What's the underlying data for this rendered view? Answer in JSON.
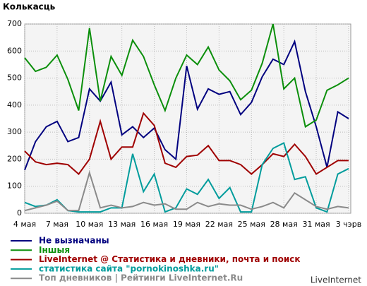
{
  "chart_data": {
    "type": "line",
    "title": "Колькасць",
    "footer": "LiveInternet",
    "categories": [
      "4 мая",
      null,
      null,
      "7 мая",
      null,
      null,
      "10 мая",
      null,
      null,
      "13 мая",
      null,
      null,
      "16 мая",
      null,
      null,
      "19 мая",
      null,
      null,
      "22 мая",
      null,
      null,
      "25 мая",
      null,
      null,
      "28 мая",
      null,
      null,
      "31 мая",
      null,
      null,
      "3 чэрв"
    ],
    "ylim": [
      0,
      700
    ],
    "yticks": [
      0,
      100,
      200,
      300,
      400,
      500,
      600,
      700
    ],
    "grid": true,
    "series": [
      {
        "name": "Не вызначаны",
        "color": "#00007f",
        "values": [
          160,
          265,
          320,
          340,
          265,
          280,
          460,
          415,
          485,
          290,
          320,
          280,
          315,
          235,
          200,
          545,
          385,
          460,
          440,
          450,
          365,
          410,
          505,
          570,
          550,
          635,
          450,
          320,
          170,
          375,
          350
        ]
      },
      {
        "name": "Іншыя",
        "color": "#0b8f0b",
        "values": [
          575,
          525,
          540,
          585,
          495,
          380,
          685,
          415,
          580,
          510,
          640,
          580,
          475,
          380,
          500,
          585,
          550,
          615,
          530,
          490,
          420,
          455,
          555,
          700,
          460,
          500,
          320,
          345,
          455,
          475,
          500
        ]
      },
      {
        "name": "LiveInternet @ Статистика и дневники, почта и поиск",
        "color": "#9f0000",
        "values": [
          230,
          190,
          180,
          185,
          180,
          145,
          200,
          340,
          200,
          245,
          245,
          370,
          325,
          185,
          170,
          210,
          215,
          250,
          195,
          195,
          180,
          145,
          180,
          220,
          210,
          255,
          210,
          145,
          170,
          195,
          195
        ]
      },
      {
        "name": "статистика сайта \"pornokinoshka.ru\"",
        "color": "#009c9c",
        "values": [
          40,
          25,
          30,
          50,
          10,
          5,
          5,
          5,
          20,
          20,
          220,
          80,
          145,
          5,
          20,
          90,
          70,
          125,
          55,
          95,
          5,
          5,
          180,
          240,
          260,
          125,
          135,
          20,
          5,
          145,
          165
        ]
      },
      {
        "name": "Топ дневников | Рейтинги LiveInternet.Ru",
        "color": "#8a8a8a",
        "values": [
          10,
          20,
          30,
          45,
          10,
          10,
          150,
          20,
          30,
          20,
          25,
          40,
          30,
          35,
          15,
          15,
          40,
          25,
          35,
          30,
          30,
          15,
          25,
          40,
          20,
          75,
          50,
          25,
          15,
          25,
          20
        ]
      }
    ]
  }
}
